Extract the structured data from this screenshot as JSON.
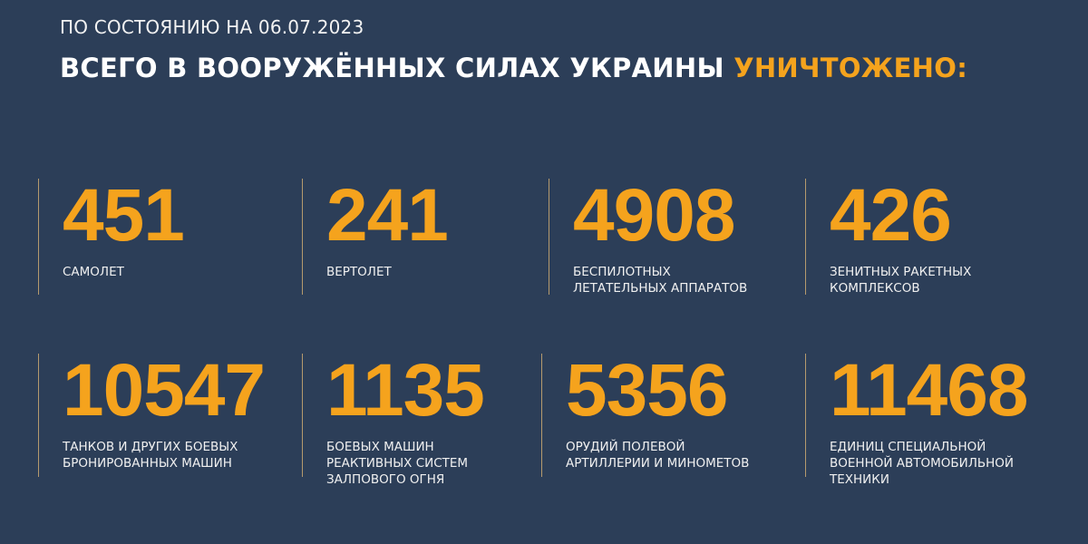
{
  "header": {
    "date_line": "ПО СОСТОЯНИЮ НА 06.07.2023",
    "title_main": "ВСЕГО В ВООРУЖЁННЫХ СИЛАХ УКРАИНЫ",
    "title_accent": "УНИЧТОЖЕНО:"
  },
  "colors": {
    "background": "#2c3e58",
    "accent": "#f5a31d"
  },
  "stats": [
    {
      "value": "451",
      "label": "САМОЛЕТ"
    },
    {
      "value": "241",
      "label": "ВЕРТОЛЕТ"
    },
    {
      "value": "4908",
      "label": "БЕСПИЛОТНЫХ\nЛЕТАТЕЛЬНЫХ АППАРАТОВ"
    },
    {
      "value": "426",
      "label": "ЗЕНИТНЫХ РАКЕТНЫХ\nКОМПЛЕКСОВ"
    },
    {
      "value": "10547",
      "label": "ТАНКОВ И ДРУГИХ БОЕВЫХ\nБРОНИРОВАННЫХ МАШИН"
    },
    {
      "value": "1135",
      "label": "БОЕВЫХ МАШИН\nРЕАКТИВНЫХ СИСТЕМ\nЗАЛПОВОГО ОГНЯ"
    },
    {
      "value": "5356",
      "label": "ОРУДИЙ ПОЛЕВОЙ\nАРТИЛЛЕРИИ И МИНОМЕТОВ"
    },
    {
      "value": "11468",
      "label": "ЕДИНИЦ СПЕЦИАЛЬНОЙ\nВОЕННОЙ АВТОМОБИЛЬНОЙ\nТЕХНИКИ"
    }
  ]
}
